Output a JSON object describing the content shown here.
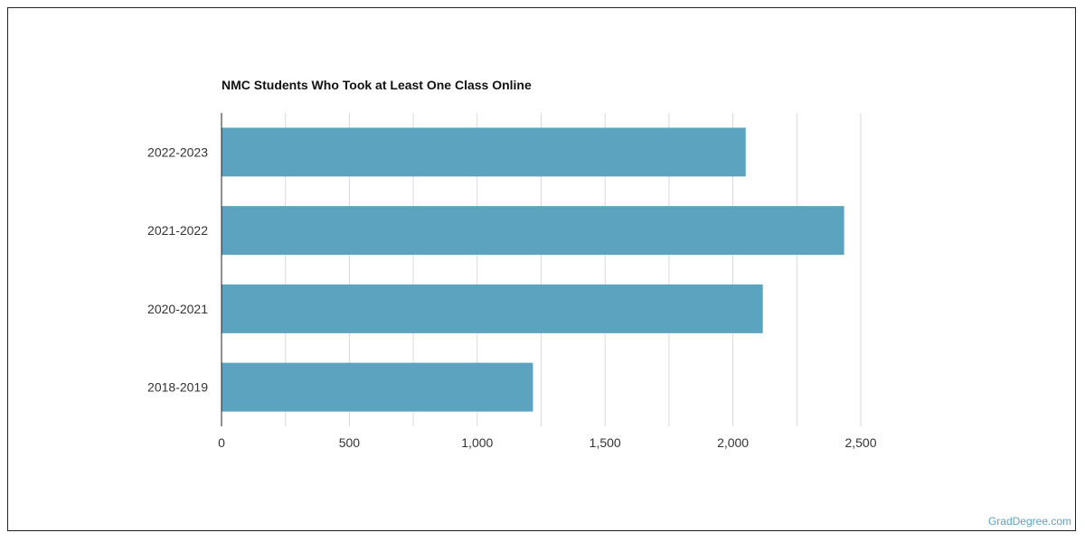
{
  "chart_data": {
    "type": "bar",
    "orientation": "horizontal",
    "title": "NMC Students Who Took at Least One Class Online",
    "xlabel": "",
    "ylabel": "",
    "categories": [
      "2022-2023",
      "2021-2022",
      "2020-2021",
      "2018-2019"
    ],
    "values": [
      2050,
      2435,
      2117,
      1218
    ],
    "xlim": [
      0,
      2500
    ],
    "xticks": [
      0,
      500,
      1000,
      1500,
      2000,
      2500
    ],
    "xtick_labels": [
      "0",
      "500",
      "1,000",
      "1,500",
      "2,000",
      "2,500"
    ],
    "grid": true,
    "bar_color": "#5ba3bf"
  },
  "source": "GradDegree.com"
}
